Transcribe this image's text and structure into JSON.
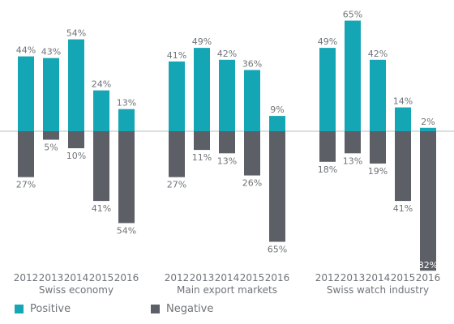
{
  "chart_data": {
    "type": "bar",
    "title": "",
    "ylim": [
      -90,
      75
    ],
    "grid": false,
    "legend_placement": "bottom-left",
    "colors": {
      "positive": "#15a6b5",
      "negative": "#5c6066",
      "text": "#6f7378"
    },
    "legend": [
      {
        "key": "positive",
        "label": "Positive"
      },
      {
        "key": "negative",
        "label": "Negative"
      }
    ],
    "groups": [
      {
        "name": "Swiss economy",
        "years": [
          "2012",
          "2013",
          "2014",
          "2015",
          "2016"
        ],
        "positive": [
          44,
          43,
          54,
          24,
          13
        ],
        "negative": [
          27,
          5,
          10,
          41,
          54
        ]
      },
      {
        "name": "Main export markets",
        "years": [
          "2012",
          "2013",
          "2014",
          "2015",
          "2016"
        ],
        "positive": [
          41,
          49,
          42,
          36,
          9
        ],
        "negative": [
          27,
          11,
          13,
          26,
          65
        ]
      },
      {
        "name": "Swiss watch industry",
        "years": [
          "2012",
          "2013",
          "2014",
          "2015",
          "2016"
        ],
        "positive": [
          49,
          65,
          42,
          14,
          2
        ],
        "negative": [
          18,
          13,
          19,
          41,
          82
        ]
      }
    ]
  }
}
